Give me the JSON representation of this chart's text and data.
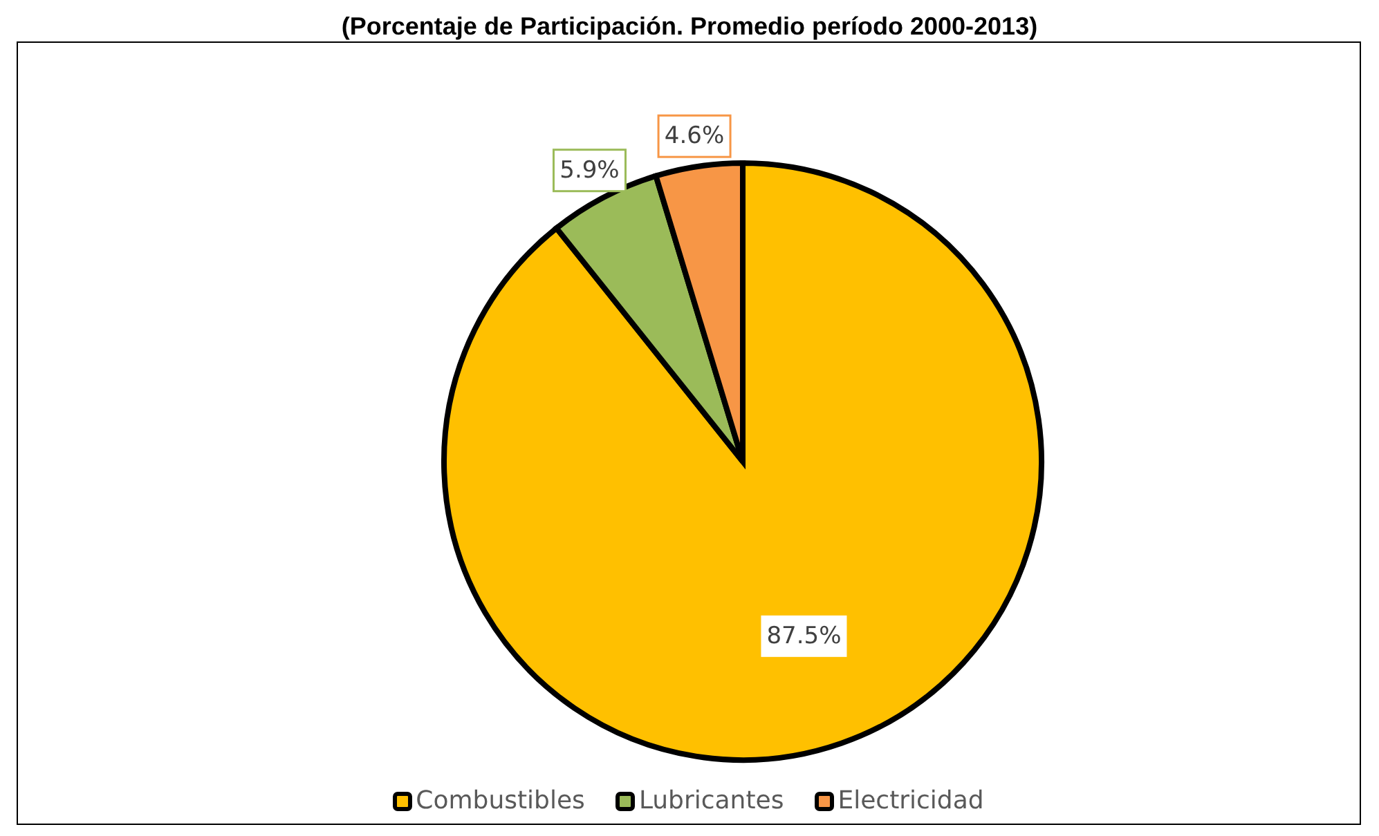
{
  "chart_data": {
    "type": "pie",
    "title": "(Porcentaje de Participación. Promedio período 2000-2013)",
    "categories": [
      "Combustibles",
      "Lubricantes",
      "Electricidad"
    ],
    "values": [
      87.5,
      5.9,
      4.6
    ],
    "colors": [
      "#ffc000",
      "#9bbb59",
      "#f79646"
    ],
    "value_labels": [
      "87.5%",
      "5.9%",
      "4.6%"
    ],
    "legend": "bottom"
  }
}
